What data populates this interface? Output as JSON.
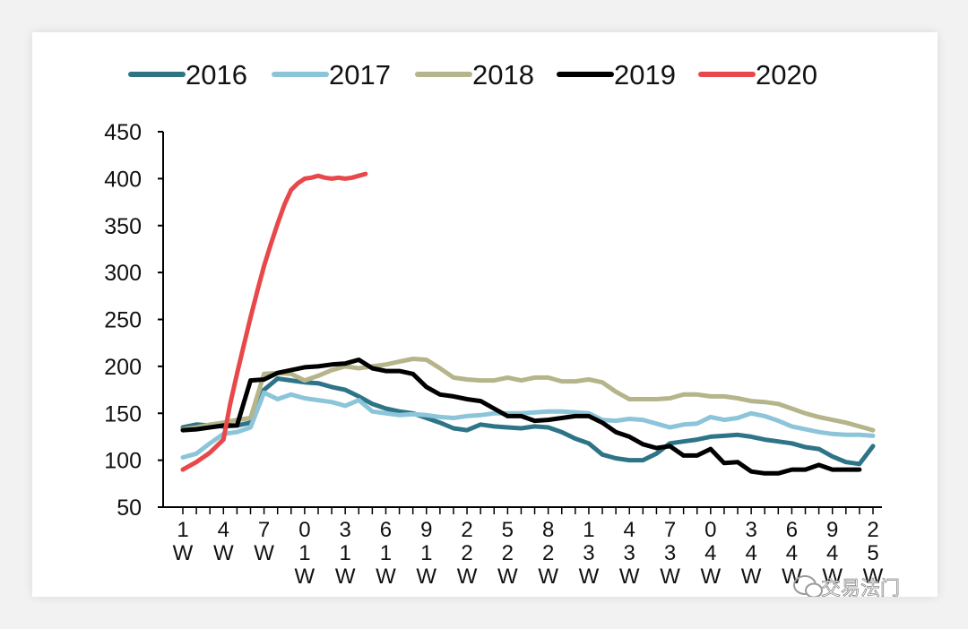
{
  "chart_data": {
    "type": "line",
    "title": "",
    "xlabel": "",
    "ylabel": "",
    "ylim": [
      50,
      450
    ],
    "yticks": [
      50,
      100,
      150,
      200,
      250,
      300,
      350,
      400,
      450
    ],
    "xrange": [
      1,
      53
    ],
    "xtick_positions": [
      1,
      4,
      7,
      10,
      13,
      16,
      19,
      22,
      25,
      28,
      31,
      34,
      37,
      40,
      43,
      46,
      49,
      52
    ],
    "xtick_labels": [
      "1\nW",
      "4\nW",
      "7\nW",
      "0\n1\nW",
      "3\n1\nW",
      "6\n1\nW",
      "9\n1\nW",
      "2\n2\nW",
      "5\n2\nW",
      "8\n2\nW",
      "1\n3\nW",
      "4\n3\nW",
      "7\n3\nW",
      "0\n4\nW",
      "3\n4\nW",
      "6\n4\nW",
      "9\n4\nW",
      "2\n5\nW"
    ],
    "series": [
      {
        "name": "2016",
        "color": "#2e7487",
        "x": [
          1,
          2,
          3,
          4,
          5,
          6,
          7,
          8,
          9,
          10,
          11,
          12,
          13,
          14,
          15,
          16,
          17,
          18,
          19,
          20,
          21,
          22,
          23,
          24,
          25,
          26,
          27,
          28,
          29,
          30,
          31,
          32,
          33,
          34,
          35,
          36,
          37,
          38,
          39,
          40,
          41,
          42,
          43,
          44,
          45,
          46,
          47,
          48,
          49,
          50,
          51,
          52
        ],
        "values": [
          135,
          138,
          137,
          136,
          137,
          140,
          175,
          187,
          185,
          183,
          182,
          178,
          175,
          168,
          160,
          155,
          152,
          150,
          145,
          140,
          134,
          132,
          138,
          136,
          135,
          134,
          136,
          135,
          130,
          123,
          118,
          106,
          102,
          100,
          100,
          107,
          118,
          120,
          122,
          125,
          126,
          127,
          125,
          122,
          120,
          118,
          114,
          112,
          104,
          98,
          96,
          115
        ]
      },
      {
        "name": "2017",
        "color": "#8cc5d9",
        "x": [
          1,
          2,
          3,
          4,
          5,
          6,
          7,
          8,
          9,
          10,
          11,
          12,
          13,
          14,
          15,
          16,
          17,
          18,
          19,
          20,
          21,
          22,
          23,
          24,
          25,
          26,
          27,
          28,
          29,
          30,
          31,
          32,
          33,
          34,
          35,
          36,
          37,
          38,
          39,
          40,
          41,
          42,
          43,
          44,
          45,
          46,
          47,
          48,
          49,
          50,
          51,
          52
        ],
        "values": [
          103,
          107,
          118,
          128,
          130,
          135,
          172,
          165,
          170,
          166,
          164,
          162,
          158,
          164,
          152,
          150,
          148,
          149,
          148,
          146,
          145,
          147,
          148,
          150,
          150,
          150,
          151,
          152,
          152,
          151,
          150,
          143,
          142,
          144,
          143,
          139,
          135,
          138,
          139,
          146,
          143,
          145,
          150,
          147,
          142,
          136,
          133,
          130,
          128,
          127,
          127,
          126
        ]
      },
      {
        "name": "2018",
        "color": "#b5b48a",
        "x": [
          1,
          2,
          3,
          4,
          5,
          6,
          7,
          8,
          9,
          10,
          11,
          12,
          13,
          14,
          15,
          16,
          17,
          18,
          19,
          20,
          21,
          22,
          23,
          24,
          25,
          26,
          27,
          28,
          29,
          30,
          31,
          32,
          33,
          34,
          35,
          36,
          37,
          38,
          39,
          40,
          41,
          42,
          43,
          44,
          45,
          46,
          47,
          48,
          49,
          50,
          51,
          52
        ],
        "values": [
          133,
          135,
          138,
          140,
          143,
          145,
          192,
          193,
          192,
          185,
          190,
          196,
          200,
          198,
          200,
          202,
          205,
          208,
          207,
          198,
          188,
          186,
          185,
          185,
          188,
          185,
          188,
          188,
          184,
          184,
          186,
          183,
          173,
          165,
          165,
          165,
          166,
          170,
          170,
          168,
          168,
          166,
          163,
          162,
          160,
          155,
          150,
          146,
          143,
          140,
          136,
          132
        ]
      },
      {
        "name": "2019",
        "color": "#000000",
        "x": [
          1,
          2,
          3,
          4,
          5,
          6,
          7,
          8,
          9,
          10,
          11,
          12,
          13,
          14,
          15,
          16,
          17,
          18,
          19,
          20,
          21,
          22,
          23,
          24,
          25,
          26,
          27,
          28,
          29,
          30,
          31,
          32,
          33,
          34,
          35,
          36,
          37,
          38,
          39,
          40,
          41,
          42,
          43,
          44,
          45,
          46,
          47,
          48,
          49,
          50,
          51
        ],
        "values": [
          132,
          133,
          135,
          137,
          137,
          185,
          186,
          193,
          196,
          199,
          200,
          202,
          203,
          207,
          198,
          195,
          195,
          192,
          178,
          170,
          168,
          165,
          163,
          155,
          147,
          147,
          142,
          143,
          145,
          147,
          147,
          140,
          130,
          125,
          117,
          113,
          115,
          105,
          105,
          112,
          97,
          98,
          88,
          86,
          86,
          90,
          90,
          95,
          90,
          90,
          90
        ]
      },
      {
        "name": "2020",
        "color": "#e8484a",
        "x": [
          1,
          2,
          3,
          4,
          4.5,
          5,
          5.5,
          6,
          6.5,
          7,
          7.5,
          8,
          8.5,
          9,
          9.5,
          10,
          10.5,
          11,
          11.5,
          12,
          12.5,
          13,
          13.5,
          14,
          14.5
        ],
        "values": [
          90,
          98,
          108,
          122,
          160,
          192,
          222,
          252,
          280,
          307,
          330,
          352,
          372,
          388,
          395,
          400,
          401,
          403,
          401,
          400,
          401,
          400,
          401,
          403,
          405
        ]
      }
    ]
  },
  "watermark": {
    "text": "交易法门",
    "icon": "wechat-icon"
  }
}
